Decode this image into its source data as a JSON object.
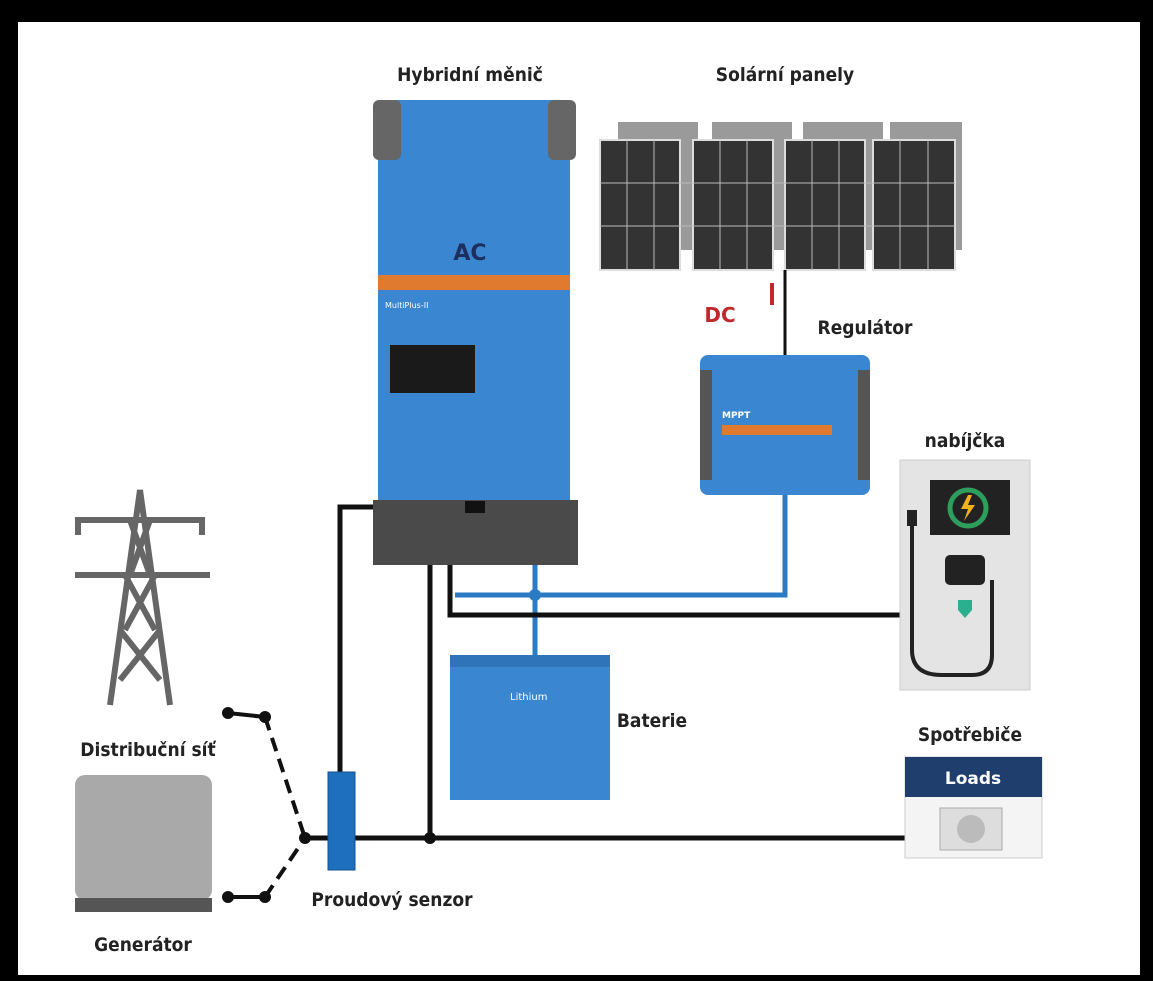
{
  "labels": {
    "inverter": "Hybridní měnič",
    "inverter_ac": "AC",
    "inverter_model": "MultiPlus-II",
    "solar": "Solární panely",
    "dc": "DC",
    "regulator": "Regulátor",
    "regulator_model": "MPPT",
    "charger": "nabíjčka",
    "battery": "Baterie",
    "battery_model": "Lithium",
    "consumers": "Spotřebiče",
    "loads": "Loads",
    "grid": "Distribuční síť",
    "sensor": "Proudový senzor",
    "generator": "Generátor"
  }
}
